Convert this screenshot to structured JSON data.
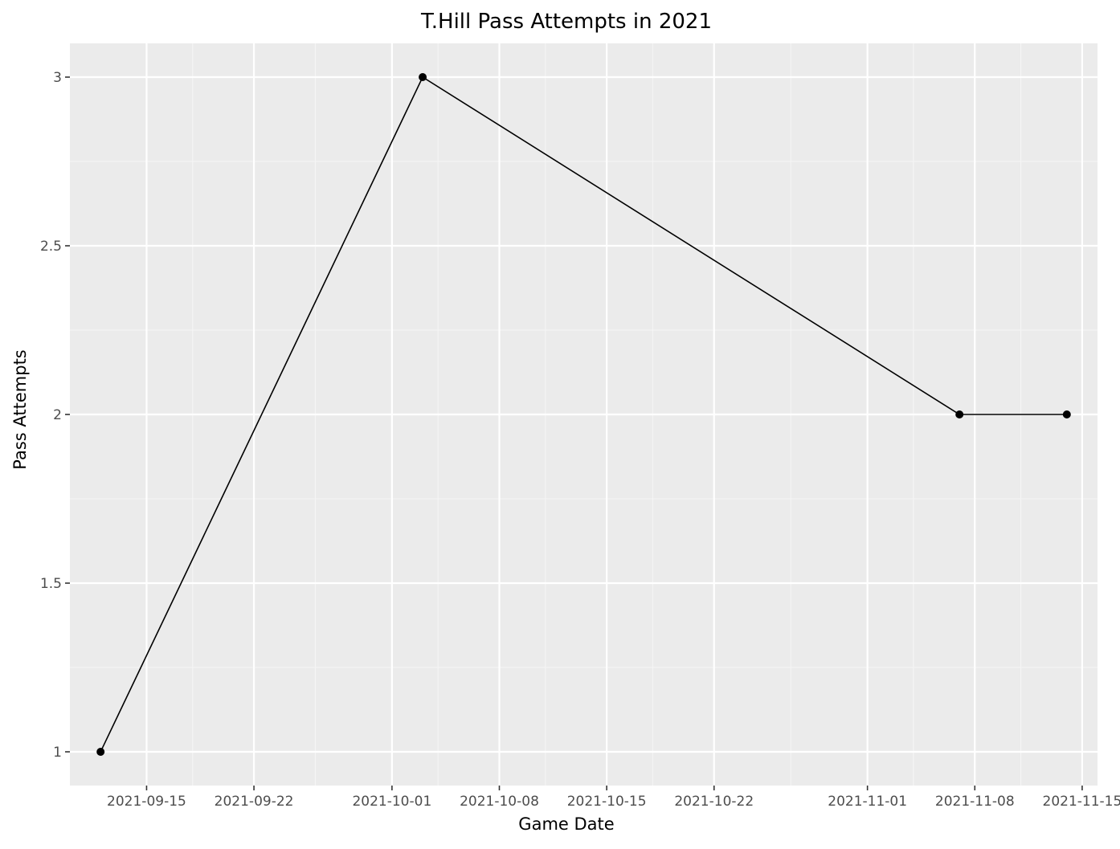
{
  "chart_data": {
    "type": "line",
    "title": "T.Hill Pass Attempts in 2021",
    "xlabel": "Game Date",
    "ylabel": "Pass Attempts",
    "x_type": "date",
    "xlim": [
      "2021-09-10",
      "2021-11-16"
    ],
    "ylim": [
      0.9,
      3.1
    ],
    "x_ticks": [
      "2021-09-15",
      "2021-09-22",
      "2021-10-01",
      "2021-10-08",
      "2021-10-15",
      "2021-10-22",
      "2021-11-01",
      "2021-11-08",
      "2021-11-15"
    ],
    "y_ticks": [
      1,
      1.5,
      2,
      2.5,
      3
    ],
    "y_tick_labels": [
      "1",
      "1.5",
      "2",
      "2.5",
      "3"
    ],
    "series": [
      {
        "x": [
          "2021-09-12",
          "2021-10-03",
          "2021-11-07",
          "2021-11-14"
        ],
        "y": [
          1,
          3,
          2,
          2
        ]
      }
    ],
    "grid": true,
    "legend": "none",
    "colors": {
      "panel_background": "#ebebeb",
      "grid_major": "#ffffff",
      "grid_minor": "#f5f5f5",
      "line": "#000000",
      "point": "#000000"
    }
  }
}
